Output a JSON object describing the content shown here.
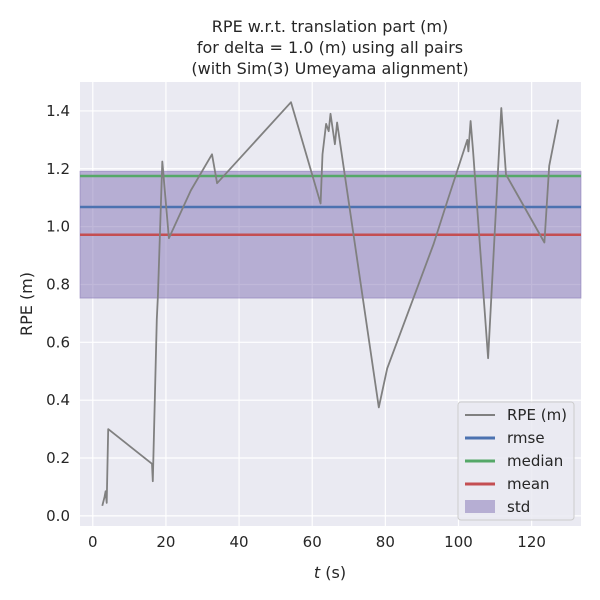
{
  "chart_data": {
    "type": "line",
    "title_lines": [
      "RPE w.r.t. translation part (m)",
      "for delta = 1.0 (m) using all pairs",
      "(with Sim(3) Umeyama alignment)"
    ],
    "xlabel_var": "t",
    "xlabel_unit": " (s)",
    "ylabel": "RPE (m)",
    "xlim": [
      -3.5,
      133.5
    ],
    "ylim": [
      -0.035,
      1.5
    ],
    "xticks": [
      0,
      20,
      40,
      60,
      80,
      100,
      120
    ],
    "yticks": [
      0.0,
      0.2,
      0.4,
      0.6,
      0.8,
      1.0,
      1.2,
      1.4
    ],
    "ytick_labels": [
      "0.0",
      "0.2",
      "0.4",
      "0.6",
      "0.8",
      "1.0",
      "1.2",
      "1.4"
    ],
    "grid": true,
    "legend_position": "lower-right",
    "series": [
      {
        "name": "RPE (m)",
        "color": "#808080",
        "x": [
          2.6,
          3.2,
          3.5,
          3.8,
          4.2,
          16.2,
          16.4,
          17.5,
          17.8,
          19.0,
          20.8,
          26.8,
          32.6,
          34.0,
          54.2,
          62.3,
          62.8,
          63.8,
          64.5,
          65.0,
          66.2,
          66.8,
          78.2,
          80.5,
          93.2,
          97.0,
          102.4,
          102.7,
          103.3,
          104.0,
          108.1,
          111.7,
          113.0,
          123.5,
          124.8,
          127.3
        ],
        "y": [
          0.035,
          0.065,
          0.085,
          0.045,
          0.3,
          0.18,
          0.12,
          0.68,
          0.76,
          1.225,
          0.96,
          1.125,
          1.25,
          1.15,
          1.43,
          1.08,
          1.25,
          1.355,
          1.33,
          1.39,
          1.285,
          1.36,
          0.375,
          0.51,
          0.94,
          1.09,
          1.3,
          1.26,
          1.365,
          1.26,
          0.545,
          1.41,
          1.18,
          0.945,
          1.21,
          1.37
        ]
      },
      {
        "name": "rmse",
        "color": "#4c72b0",
        "value": 1.068
      },
      {
        "name": "median",
        "color": "#55a868",
        "value": 1.175
      },
      {
        "name": "mean",
        "color": "#c44e52",
        "value": 0.972
      },
      {
        "name": "std",
        "color": "#8172b3",
        "lower": 0.753,
        "upper": 1.191
      }
    ]
  }
}
